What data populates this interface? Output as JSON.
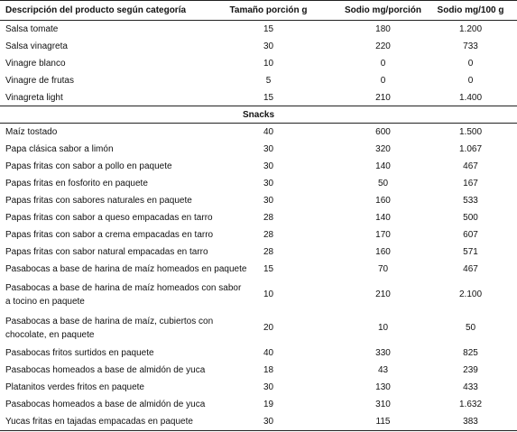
{
  "table": {
    "header": [
      "Descripción del producto según categoría",
      "Tamaño porción g",
      "Sodio mg/porción",
      "Sodio mg/100 g"
    ],
    "sections": [
      {
        "rows": [
          [
            "Salsa tomate",
            "15",
            "180",
            "1.200"
          ],
          [
            "Salsa vinagreta",
            "30",
            "220",
            "733"
          ],
          [
            "Vinagre blanco",
            "10",
            "0",
            "0"
          ],
          [
            "Vinagre de frutas",
            "5",
            "0",
            "0"
          ],
          [
            "Vinagreta light",
            "15",
            "210",
            "1.400"
          ]
        ]
      },
      {
        "title": "Snacks",
        "rows": [
          [
            "Maíz tostado",
            "40",
            "600",
            "1.500"
          ],
          [
            "Papa clásica sabor a limón",
            "30",
            "320",
            "1.067"
          ],
          [
            "Papas fritas con sabor a pollo en paquete",
            "30",
            "140",
            "467"
          ],
          [
            "Papas fritas en fosforito en paquete",
            "30",
            "50",
            "167"
          ],
          [
            "Papas fritas con sabores naturales en paquete",
            "30",
            "160",
            "533"
          ],
          [
            "Papas fritas con sabor a queso empacadas en tarro",
            "28",
            "140",
            "500"
          ],
          [
            "Papas fritas con sabor a crema empacadas en tarro",
            "28",
            "170",
            "607"
          ],
          [
            "Papas fritas con sabor natural empacadas en tarro",
            "28",
            "160",
            "571"
          ],
          [
            "Pasabocas a base de harina de maíz homeados en paquete",
            "15",
            "70",
            "467"
          ],
          [
            "Pasabocas a base de harina de maíz homeados con sabor\na tocino en paquete",
            "10",
            "210",
            "2.100"
          ],
          [
            "Pasabocas a base de harina de maíz, cubiertos con\nchocolate, en paquete",
            "20",
            "10",
            "50"
          ],
          [
            "Pasabocas fritos surtidos en paquete",
            "40",
            "330",
            "825"
          ],
          [
            "Pasabocas homeados a base de almidón de yuca",
            "18",
            "43",
            "239"
          ],
          [
            "Platanitos verdes fritos en paquete",
            "30",
            "130",
            "433"
          ],
          [
            "Pasabocas homeados a base de almidón de yuca",
            "19",
            "310",
            "1.632"
          ],
          [
            "Yucas fritas en tajadas empacadas en paquete",
            "30",
            "115",
            "383"
          ]
        ]
      }
    ]
  }
}
